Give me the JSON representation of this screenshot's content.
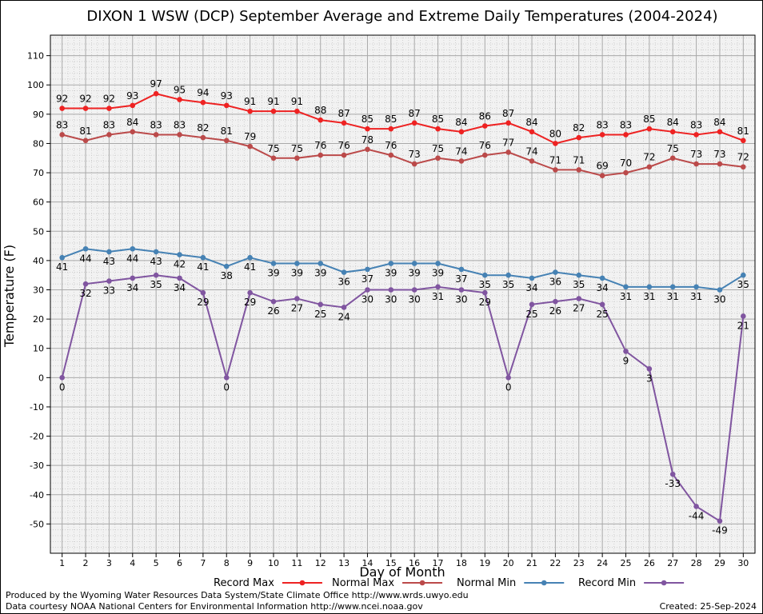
{
  "chart_data": {
    "type": "line",
    "title": "DIXON 1 WSW (DCP) September Average and Extreme Daily Temperatures (2004-2024)",
    "xlabel": "Day of Month",
    "ylabel": "Temperature (F)",
    "x": [
      1,
      2,
      3,
      4,
      5,
      6,
      7,
      8,
      9,
      10,
      11,
      12,
      13,
      14,
      15,
      16,
      17,
      18,
      19,
      20,
      21,
      22,
      23,
      24,
      25,
      26,
      27,
      28,
      29,
      30
    ],
    "xlim": [
      0.5,
      30.5
    ],
    "ylim": [
      -60,
      117
    ],
    "yticks": [
      110,
      100,
      90,
      80,
      70,
      60,
      50,
      40,
      30,
      20,
      10,
      0,
      -10,
      -20,
      -30,
      -40,
      -50
    ],
    "grid": true,
    "legend_position": "bottom",
    "series": [
      {
        "name": "Record Max",
        "color": "#ee2222",
        "label_position": "above",
        "values": [
          92,
          92,
          92,
          93,
          97,
          95,
          94,
          93,
          91,
          91,
          91,
          88,
          87,
          85,
          85,
          87,
          85,
          84,
          86,
          87,
          84,
          80,
          82,
          83,
          83,
          85,
          84,
          83,
          84,
          81
        ]
      },
      {
        "name": "Normal Max",
        "color": "#bb4a4a",
        "label_position": "above",
        "values": [
          83,
          81,
          83,
          84,
          83,
          83,
          82,
          81,
          79,
          75,
          75,
          76,
          76,
          78,
          76,
          73,
          75,
          74,
          76,
          77,
          74,
          71,
          71,
          69,
          70,
          72,
          75,
          73,
          73,
          72
        ]
      },
      {
        "name": "Normal Min",
        "color": "#4682b4",
        "label_position": "below",
        "values": [
          41,
          44,
          43,
          44,
          43,
          42,
          41,
          38,
          41,
          39,
          39,
          39,
          36,
          37,
          39,
          39,
          39,
          37,
          35,
          35,
          34,
          36,
          35,
          34,
          31,
          31,
          31,
          31,
          30,
          35
        ]
      },
      {
        "name": "Record Min",
        "color": "#8055a0",
        "label_position": "below",
        "values": [
          0,
          32,
          33,
          34,
          35,
          34,
          29,
          0,
          29,
          26,
          27,
          25,
          24,
          30,
          30,
          30,
          31,
          30,
          29,
          0,
          25,
          26,
          27,
          25,
          9,
          3,
          -33,
          -44,
          -49,
          21
        ]
      }
    ]
  },
  "footer": {
    "producer": "Produced by the Wyoming Water Resources Data System/State Climate Office http://www.wrds.uwyo.edu",
    "courtesy": "Data courtesy NOAA National Centers for Environmental Information http://www.ncei.noaa.gov",
    "created": "Created:  25-Sep-2024"
  }
}
